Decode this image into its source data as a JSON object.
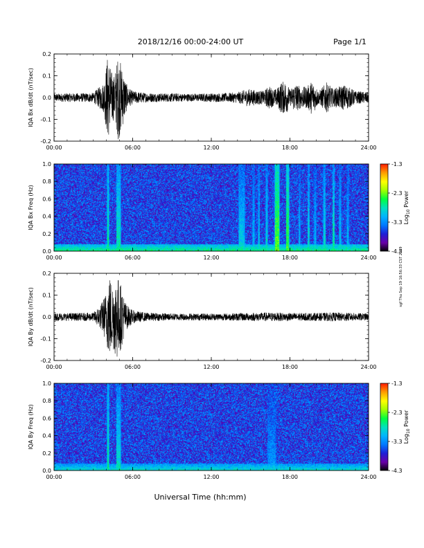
{
  "header": {
    "title": "2018/12/16  00:00-24:00 UT",
    "page": "Page 1/1"
  },
  "footer": {
    "xlabel": "Universal Time (hh:mm)",
    "side_note": "sgf Thu Sep 19 16:56:33 CST 2019"
  },
  "colors": {
    "background": "#ffffff",
    "trace": "#000000",
    "spectrogram_colormap": [
      "#000000",
      "#6a00a8",
      "#1f1fd6",
      "#0078ff",
      "#00b4ff",
      "#00e0c0",
      "#00ff40",
      "#a0ff00",
      "#ffff00",
      "#ffa000",
      "#ff2000"
    ]
  },
  "chart_data": [
    {
      "type": "line",
      "ylabel": "IQA Bx dB/dt (nT/sec)",
      "ylim": [
        -0.2,
        0.2
      ],
      "yticks": [
        "0.2",
        "0.1",
        "0.0",
        "-0.1",
        "-0.2"
      ],
      "xlim": [
        0,
        24
      ],
      "xticks": [
        "00:00",
        "06:00",
        "12:00",
        "18:00",
        "24:00"
      ],
      "series": [
        {
          "x": [
            0,
            1,
            2,
            3,
            3.8,
            4.1,
            4.4,
            4.6,
            4.9,
            5.2,
            5.6,
            6,
            7,
            8,
            9,
            10,
            11,
            12,
            13,
            14,
            14.8,
            15.4,
            16,
            16.4,
            16.7,
            17,
            17.3,
            17.7,
            18,
            18.4,
            18.8,
            19.3,
            19.7,
            20.2,
            20.8,
            21.3,
            21.7,
            22.2,
            23,
            24
          ],
          "amplitude": [
            0.018,
            0.02,
            0.02,
            0.022,
            0.07,
            0.2,
            0.12,
            0.1,
            0.2,
            0.14,
            0.05,
            0.03,
            0.022,
            0.02,
            0.02,
            0.018,
            0.018,
            0.02,
            0.02,
            0.025,
            0.04,
            0.035,
            0.03,
            0.055,
            0.04,
            0.04,
            0.07,
            0.08,
            0.035,
            0.07,
            0.05,
            0.05,
            0.08,
            0.03,
            0.07,
            0.04,
            0.05,
            0.06,
            0.03,
            0.025
          ]
        }
      ]
    },
    {
      "type": "heatmap",
      "ylabel": "IQA Bx Freq (Hz)",
      "ylim": [
        0.0,
        1.0
      ],
      "yticks": [
        "1.0",
        "0.8",
        "0.6",
        "0.4",
        "0.2",
        "0.0"
      ],
      "xlim": [
        0,
        24
      ],
      "xticks": [
        "00:00",
        "06:00",
        "12:00",
        "18:00",
        "24:00"
      ],
      "colorbar_label": "Log10 Power",
      "colorbar_ticks": [
        "-1.3",
        "-2.3",
        "-3.3",
        "-4.3"
      ],
      "clim": [
        -4.3,
        -1.3
      ],
      "baseline": -3.6,
      "low_freq_enhancement": -2.6,
      "features": [
        {
          "t": 4.1,
          "width": 0.12,
          "level": -2.6
        },
        {
          "t": 4.9,
          "width": 0.3,
          "level": -2.7
        },
        {
          "t": 14.3,
          "width": 0.4,
          "level": -2.9
        },
        {
          "t": 15.2,
          "width": 0.1,
          "level": -3.0
        },
        {
          "t": 15.6,
          "width": 0.1,
          "level": -2.9
        },
        {
          "t": 16.2,
          "width": 0.15,
          "level": -2.8
        },
        {
          "t": 17.0,
          "width": 0.35,
          "level": -2.3
        },
        {
          "t": 17.8,
          "width": 0.2,
          "level": -2.4
        },
        {
          "t": 18.7,
          "width": 0.1,
          "level": -3.0
        },
        {
          "t": 19.4,
          "width": 0.12,
          "level": -2.8
        },
        {
          "t": 19.9,
          "width": 0.1,
          "level": -3.0
        },
        {
          "t": 20.6,
          "width": 0.15,
          "level": -2.8
        },
        {
          "t": 21.3,
          "width": 0.12,
          "level": -2.7
        },
        {
          "t": 21.8,
          "width": 0.12,
          "level": -2.9
        },
        {
          "t": 22.4,
          "width": 0.12,
          "level": -3.0
        }
      ]
    },
    {
      "type": "line",
      "ylabel": "IQA By dB/dt (nT/sec)",
      "ylim": [
        -0.2,
        0.2
      ],
      "yticks": [
        "0.2",
        "0.1",
        "0.0",
        "-0.1",
        "-0.2"
      ],
      "xlim": [
        0,
        24
      ],
      "xticks": [
        "00:00",
        "06:00",
        "12:00",
        "18:00",
        "24:00"
      ],
      "series": [
        {
          "x": [
            0,
            1,
            2,
            3,
            3.6,
            4.0,
            4.2,
            4.5,
            4.8,
            5.1,
            5.5,
            6,
            7,
            8,
            9,
            10,
            11,
            12,
            13,
            14,
            15,
            16,
            17,
            18,
            19,
            20,
            21,
            22,
            23,
            24
          ],
          "amplitude": [
            0.018,
            0.018,
            0.018,
            0.02,
            0.06,
            0.12,
            0.2,
            0.15,
            0.2,
            0.15,
            0.06,
            0.03,
            0.02,
            0.018,
            0.016,
            0.016,
            0.016,
            0.016,
            0.016,
            0.018,
            0.018,
            0.02,
            0.02,
            0.018,
            0.018,
            0.018,
            0.02,
            0.02,
            0.018,
            0.016
          ]
        }
      ]
    },
    {
      "type": "heatmap",
      "ylabel": "IQA By Freq (Hz)",
      "ylim": [
        0.0,
        1.0
      ],
      "yticks": [
        "1.0",
        "0.8",
        "0.6",
        "0.4",
        "0.2",
        "0.0"
      ],
      "xlim": [
        0,
        24
      ],
      "xticks": [
        "00:00",
        "06:00",
        "12:00",
        "18:00",
        "24:00"
      ],
      "colorbar_label": "Log10 Power",
      "colorbar_ticks": [
        "-1.3",
        "-2.3",
        "-3.3",
        "-4.3"
      ],
      "clim": [
        -4.3,
        -1.3
      ],
      "baseline": -3.6,
      "low_freq_enhancement": -2.8,
      "features": [
        {
          "t": 4.1,
          "width": 0.12,
          "level": -2.6
        },
        {
          "t": 4.9,
          "width": 0.3,
          "level": -2.8
        },
        {
          "t": 16.6,
          "width": 0.6,
          "level": -3.2
        }
      ]
    }
  ]
}
